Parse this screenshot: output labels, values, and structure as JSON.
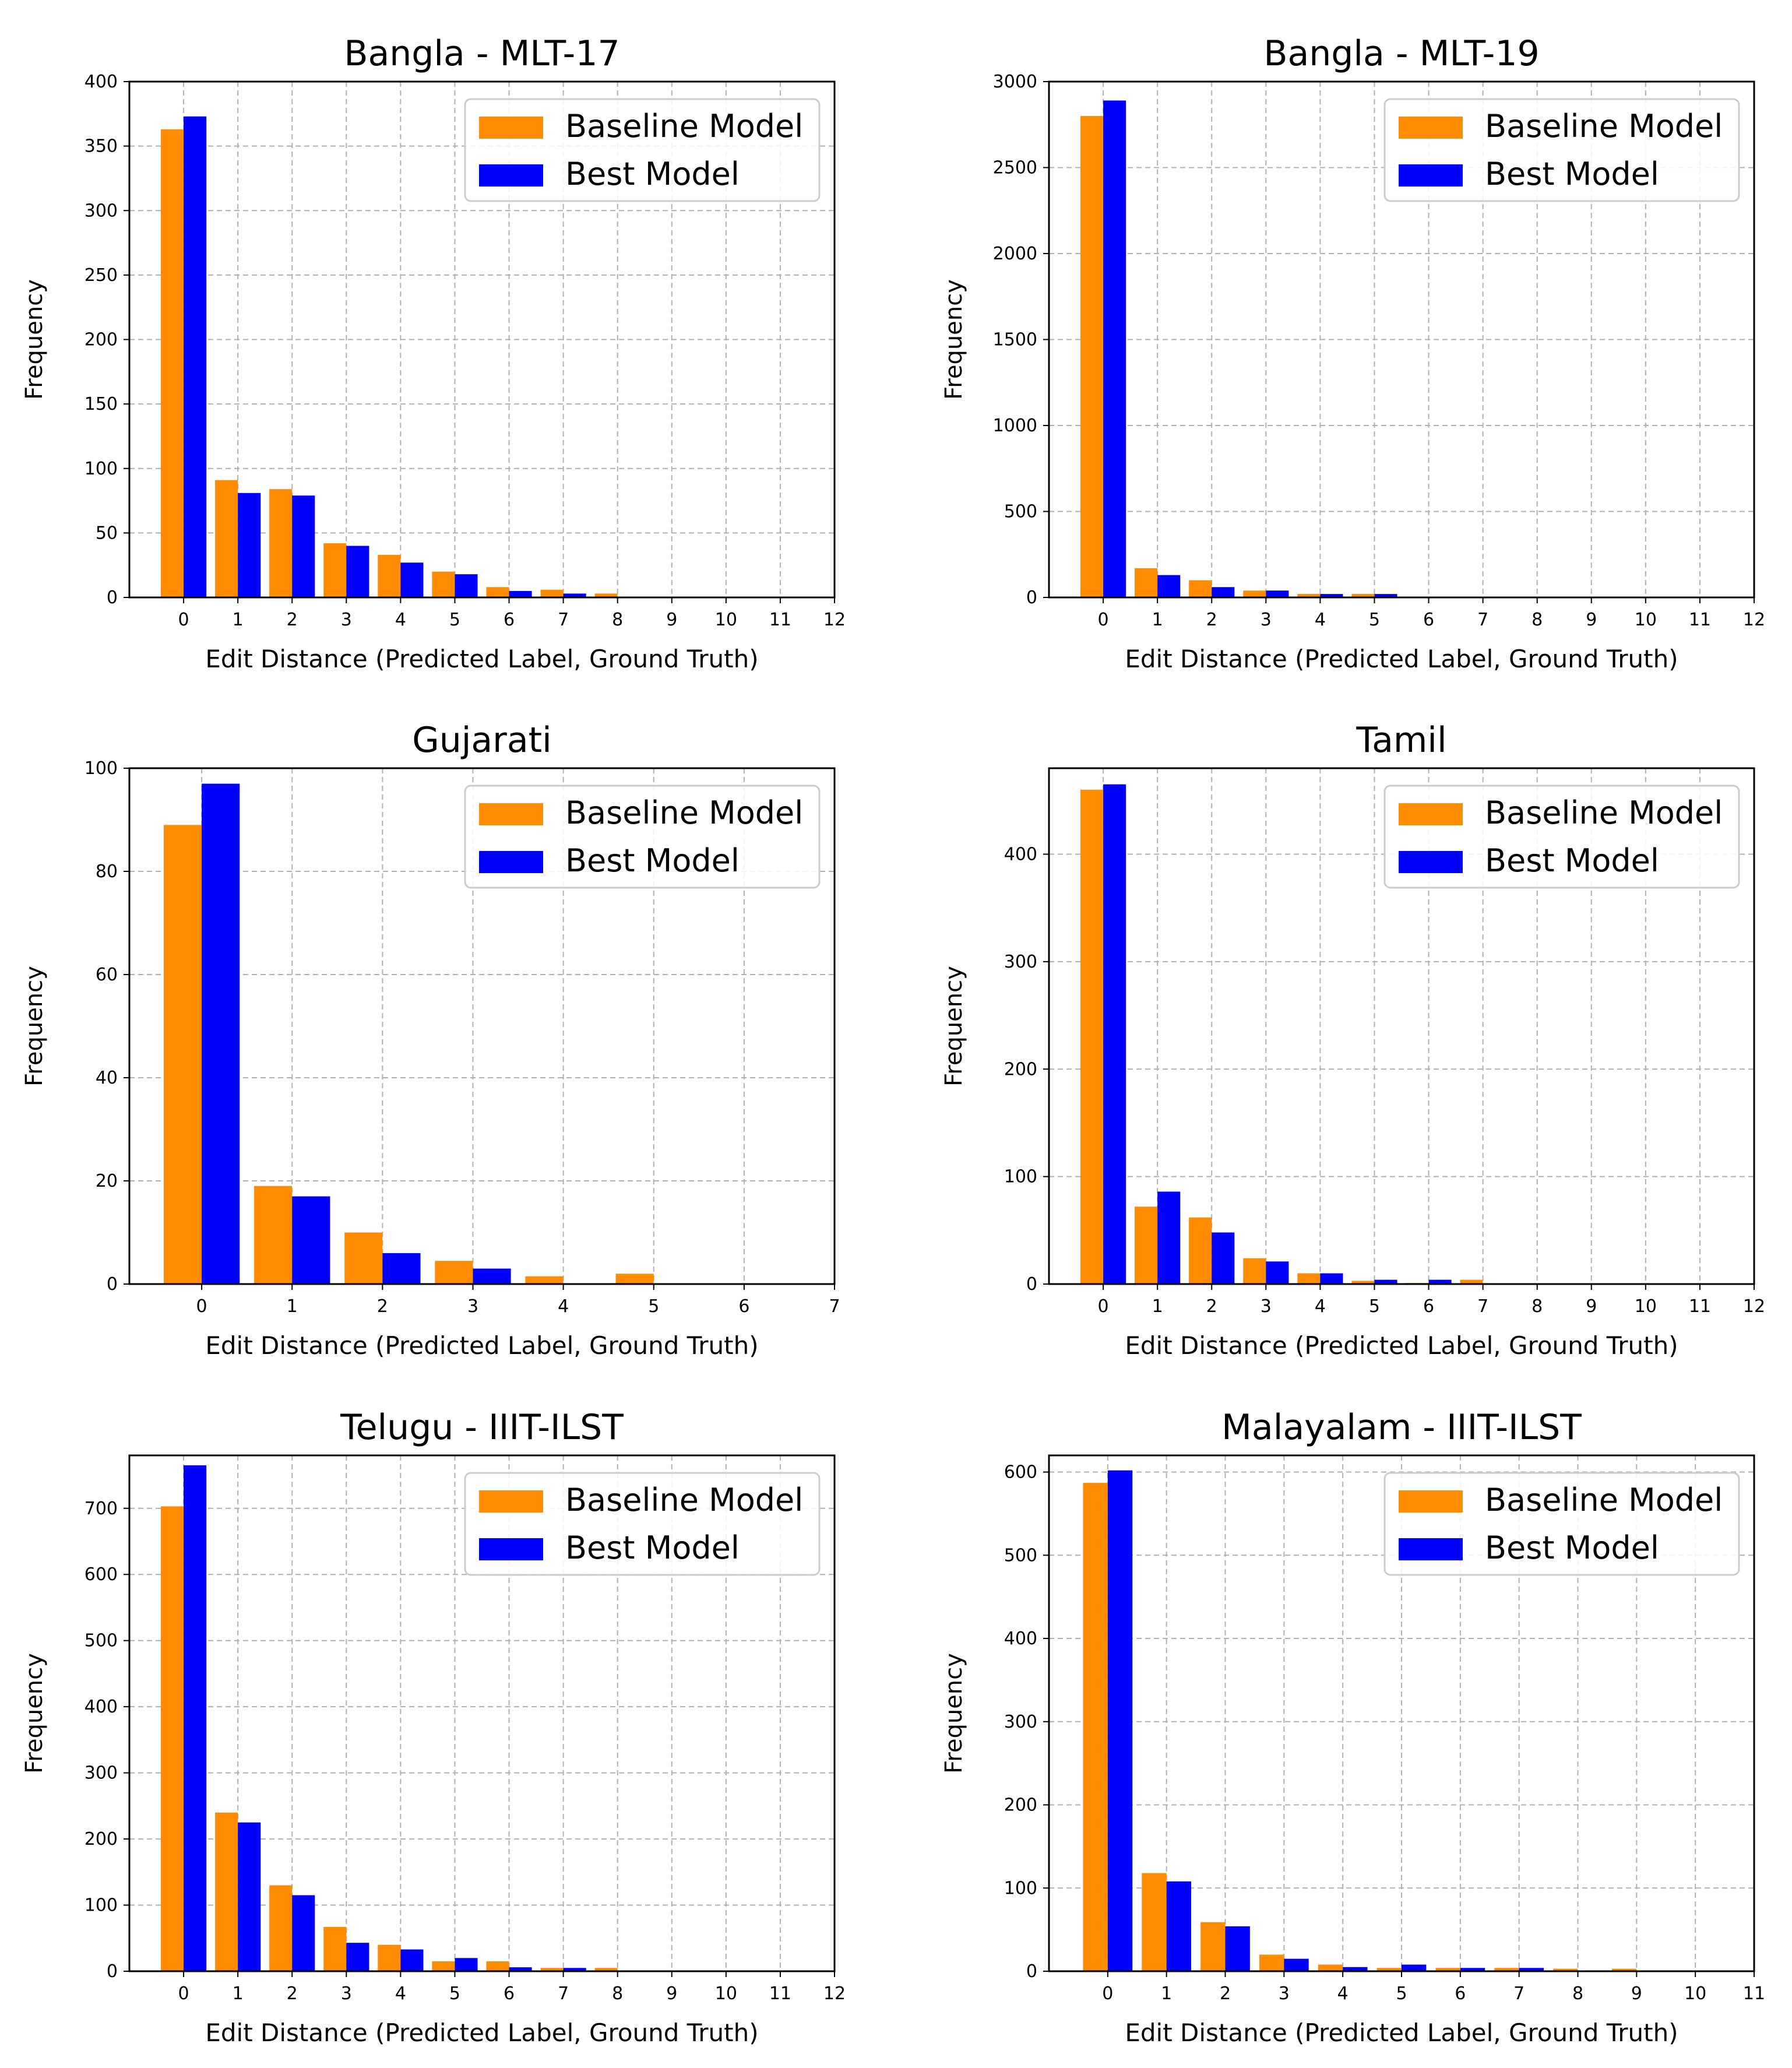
{
  "colors": {
    "baseline": "#ff8c00",
    "best": "#0000ff",
    "grid": "#b0b0b0",
    "axis": "#000000"
  },
  "chart_data": [
    {
      "type": "bar",
      "title": "Bangla - MLT-17",
      "xlabel": "Edit Distance (Predicted Label, Ground Truth)",
      "ylabel": "Frequency",
      "xlim": [
        -1,
        12
      ],
      "ylim": [
        0,
        400
      ],
      "xticks": [
        0,
        1,
        2,
        3,
        4,
        5,
        6,
        7,
        8,
        9,
        10,
        11,
        12
      ],
      "yticks": [
        0,
        50,
        100,
        150,
        200,
        250,
        300,
        350,
        400
      ],
      "grid": true,
      "legend": "top-right",
      "series": [
        {
          "name": "Baseline Model",
          "x": [
            0,
            1,
            2,
            3,
            4,
            5,
            6,
            7,
            8
          ],
          "values": [
            363,
            91,
            84,
            42,
            33,
            20,
            8,
            6,
            3
          ]
        },
        {
          "name": "Best Model",
          "x": [
            0,
            1,
            2,
            3,
            4,
            5,
            6,
            7
          ],
          "values": [
            373,
            81,
            79,
            40,
            27,
            18,
            5,
            3
          ]
        }
      ]
    },
    {
      "type": "bar",
      "title": "Bangla - MLT-19",
      "xlabel": "Edit Distance (Predicted Label, Ground Truth)",
      "ylabel": "Frequency",
      "xlim": [
        -1,
        12
      ],
      "ylim": [
        0,
        3000
      ],
      "xticks": [
        0,
        1,
        2,
        3,
        4,
        5,
        6,
        7,
        8,
        9,
        10,
        11,
        12
      ],
      "yticks": [
        0,
        500,
        1000,
        1500,
        2000,
        2500,
        3000
      ],
      "grid": true,
      "legend": "top-right",
      "series": [
        {
          "name": "Baseline Model",
          "x": [
            0,
            1,
            2,
            3,
            4,
            5
          ],
          "values": [
            2800,
            170,
            100,
            40,
            20,
            20
          ]
        },
        {
          "name": "Best Model",
          "x": [
            0,
            1,
            2,
            3,
            4,
            5
          ],
          "values": [
            2890,
            130,
            60,
            40,
            20,
            20
          ]
        }
      ]
    },
    {
      "type": "bar",
      "title": "Gujarati",
      "xlabel": "Edit Distance (Predicted Label, Ground Truth)",
      "ylabel": "Frequency",
      "xlim": [
        -0.8,
        7
      ],
      "ylim": [
        0,
        100
      ],
      "xticks": [
        0,
        1,
        2,
        3,
        4,
        5,
        6,
        7
      ],
      "yticks": [
        0,
        20,
        40,
        60,
        80,
        100
      ],
      "grid": true,
      "legend": "top-right",
      "series": [
        {
          "name": "Baseline Model",
          "x": [
            0,
            1,
            2,
            3,
            4,
            5
          ],
          "values": [
            89,
            19,
            10,
            4.5,
            1.5,
            2
          ]
        },
        {
          "name": "Best Model",
          "x": [
            0,
            1,
            2,
            3
          ],
          "values": [
            97,
            17,
            6,
            3
          ]
        }
      ]
    },
    {
      "type": "bar",
      "title": "Tamil",
      "xlabel": "Edit Distance (Predicted Label, Ground Truth)",
      "ylabel": "Frequency",
      "xlim": [
        -1,
        12
      ],
      "ylim": [
        0,
        480
      ],
      "xticks": [
        0,
        1,
        2,
        3,
        4,
        5,
        6,
        7,
        8,
        9,
        10,
        11,
        12
      ],
      "yticks": [
        0,
        100,
        200,
        300,
        400
      ],
      "grid": true,
      "legend": "top-right",
      "series": [
        {
          "name": "Baseline Model",
          "x": [
            0,
            1,
            2,
            3,
            4,
            5,
            6,
            7
          ],
          "values": [
            460,
            72,
            62,
            24,
            10,
            3,
            1,
            4
          ]
        },
        {
          "name": "Best Model",
          "x": [
            0,
            1,
            2,
            3,
            4,
            5,
            6
          ],
          "values": [
            465,
            86,
            48,
            21,
            10,
            4,
            4
          ]
        }
      ]
    },
    {
      "type": "bar",
      "title": "Telugu - IIIT-ILST",
      "xlabel": "Edit Distance (Predicted Label, Ground Truth)",
      "ylabel": "Frequency",
      "xlim": [
        -1,
        12
      ],
      "ylim": [
        0,
        780
      ],
      "xticks": [
        0,
        1,
        2,
        3,
        4,
        5,
        6,
        7,
        8,
        9,
        10,
        11,
        12
      ],
      "yticks": [
        0,
        100,
        200,
        300,
        400,
        500,
        600,
        700
      ],
      "grid": true,
      "legend": "top-right",
      "series": [
        {
          "name": "Baseline Model",
          "x": [
            0,
            1,
            2,
            3,
            4,
            5,
            6,
            7,
            8
          ],
          "values": [
            703,
            240,
            130,
            67,
            40,
            15,
            15,
            5,
            5
          ]
        },
        {
          "name": "Best Model",
          "x": [
            0,
            1,
            2,
            3,
            4,
            5,
            6,
            7
          ],
          "values": [
            765,
            225,
            115,
            43,
            33,
            20,
            6,
            5
          ]
        }
      ]
    },
    {
      "type": "bar",
      "title": "Malayalam - IIIT-ILST",
      "xlabel": "Edit Distance (Predicted Label, Ground Truth)",
      "ylabel": "Frequency",
      "xlim": [
        -1,
        11
      ],
      "ylim": [
        0,
        620
      ],
      "xticks": [
        0,
        1,
        2,
        3,
        4,
        5,
        6,
        7,
        8,
        9,
        10,
        11
      ],
      "yticks": [
        0,
        100,
        200,
        300,
        400,
        500,
        600
      ],
      "grid": true,
      "legend": "top-right",
      "series": [
        {
          "name": "Baseline Model",
          "x": [
            0,
            1,
            2,
            3,
            4,
            5,
            6,
            7,
            8,
            9
          ],
          "values": [
            587,
            118,
            59,
            20,
            8,
            4,
            4,
            4,
            3,
            3
          ]
        },
        {
          "name": "Best Model",
          "x": [
            0,
            1,
            2,
            3,
            4,
            5,
            6,
            7
          ],
          "values": [
            602,
            108,
            54,
            15,
            5,
            8,
            4,
            4
          ]
        }
      ]
    }
  ]
}
